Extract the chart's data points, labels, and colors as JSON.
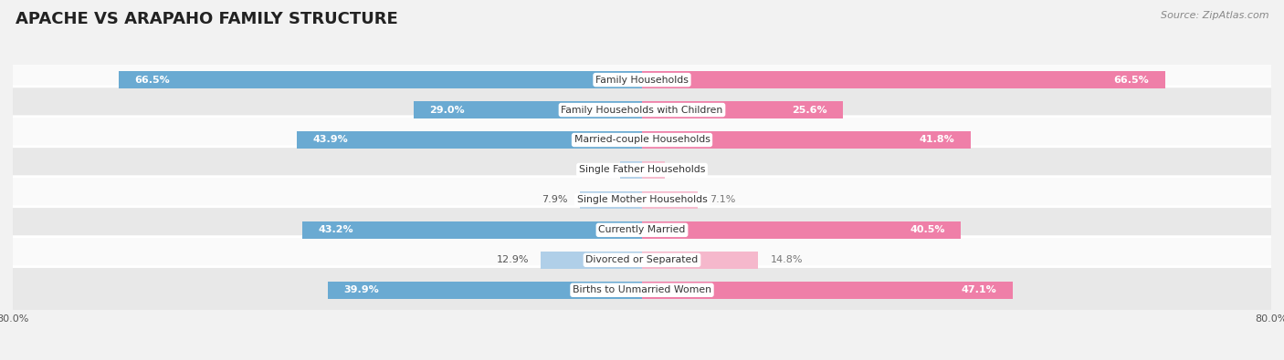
{
  "title": "APACHE VS ARAPAHO FAMILY STRUCTURE",
  "source": "Source: ZipAtlas.com",
  "categories": [
    "Family Households",
    "Family Households with Children",
    "Married-couple Households",
    "Single Father Households",
    "Single Mother Households",
    "Currently Married",
    "Divorced or Separated",
    "Births to Unmarried Women"
  ],
  "apache_values": [
    66.5,
    29.0,
    43.9,
    2.8,
    7.9,
    43.2,
    12.9,
    39.9
  ],
  "arapaho_values": [
    66.5,
    25.6,
    41.8,
    2.9,
    7.1,
    40.5,
    14.8,
    47.1
  ],
  "x_max": 80.0,
  "apache_color_strong": "#6aaad2",
  "apache_color_light": "#b0cfe8",
  "arapaho_color_strong": "#ef7fa8",
  "arapaho_color_light": "#f5b8cc",
  "threshold_strong": 25.0,
  "bg_color": "#f2f2f2",
  "row_bg_light": "#fafafa",
  "row_bg_dark": "#e8e8e8",
  "label_fontsize": 7.8,
  "title_fontsize": 13,
  "source_fontsize": 8,
  "legend_fontsize": 9,
  "value_fontsize": 8,
  "x_label_fontsize": 8
}
